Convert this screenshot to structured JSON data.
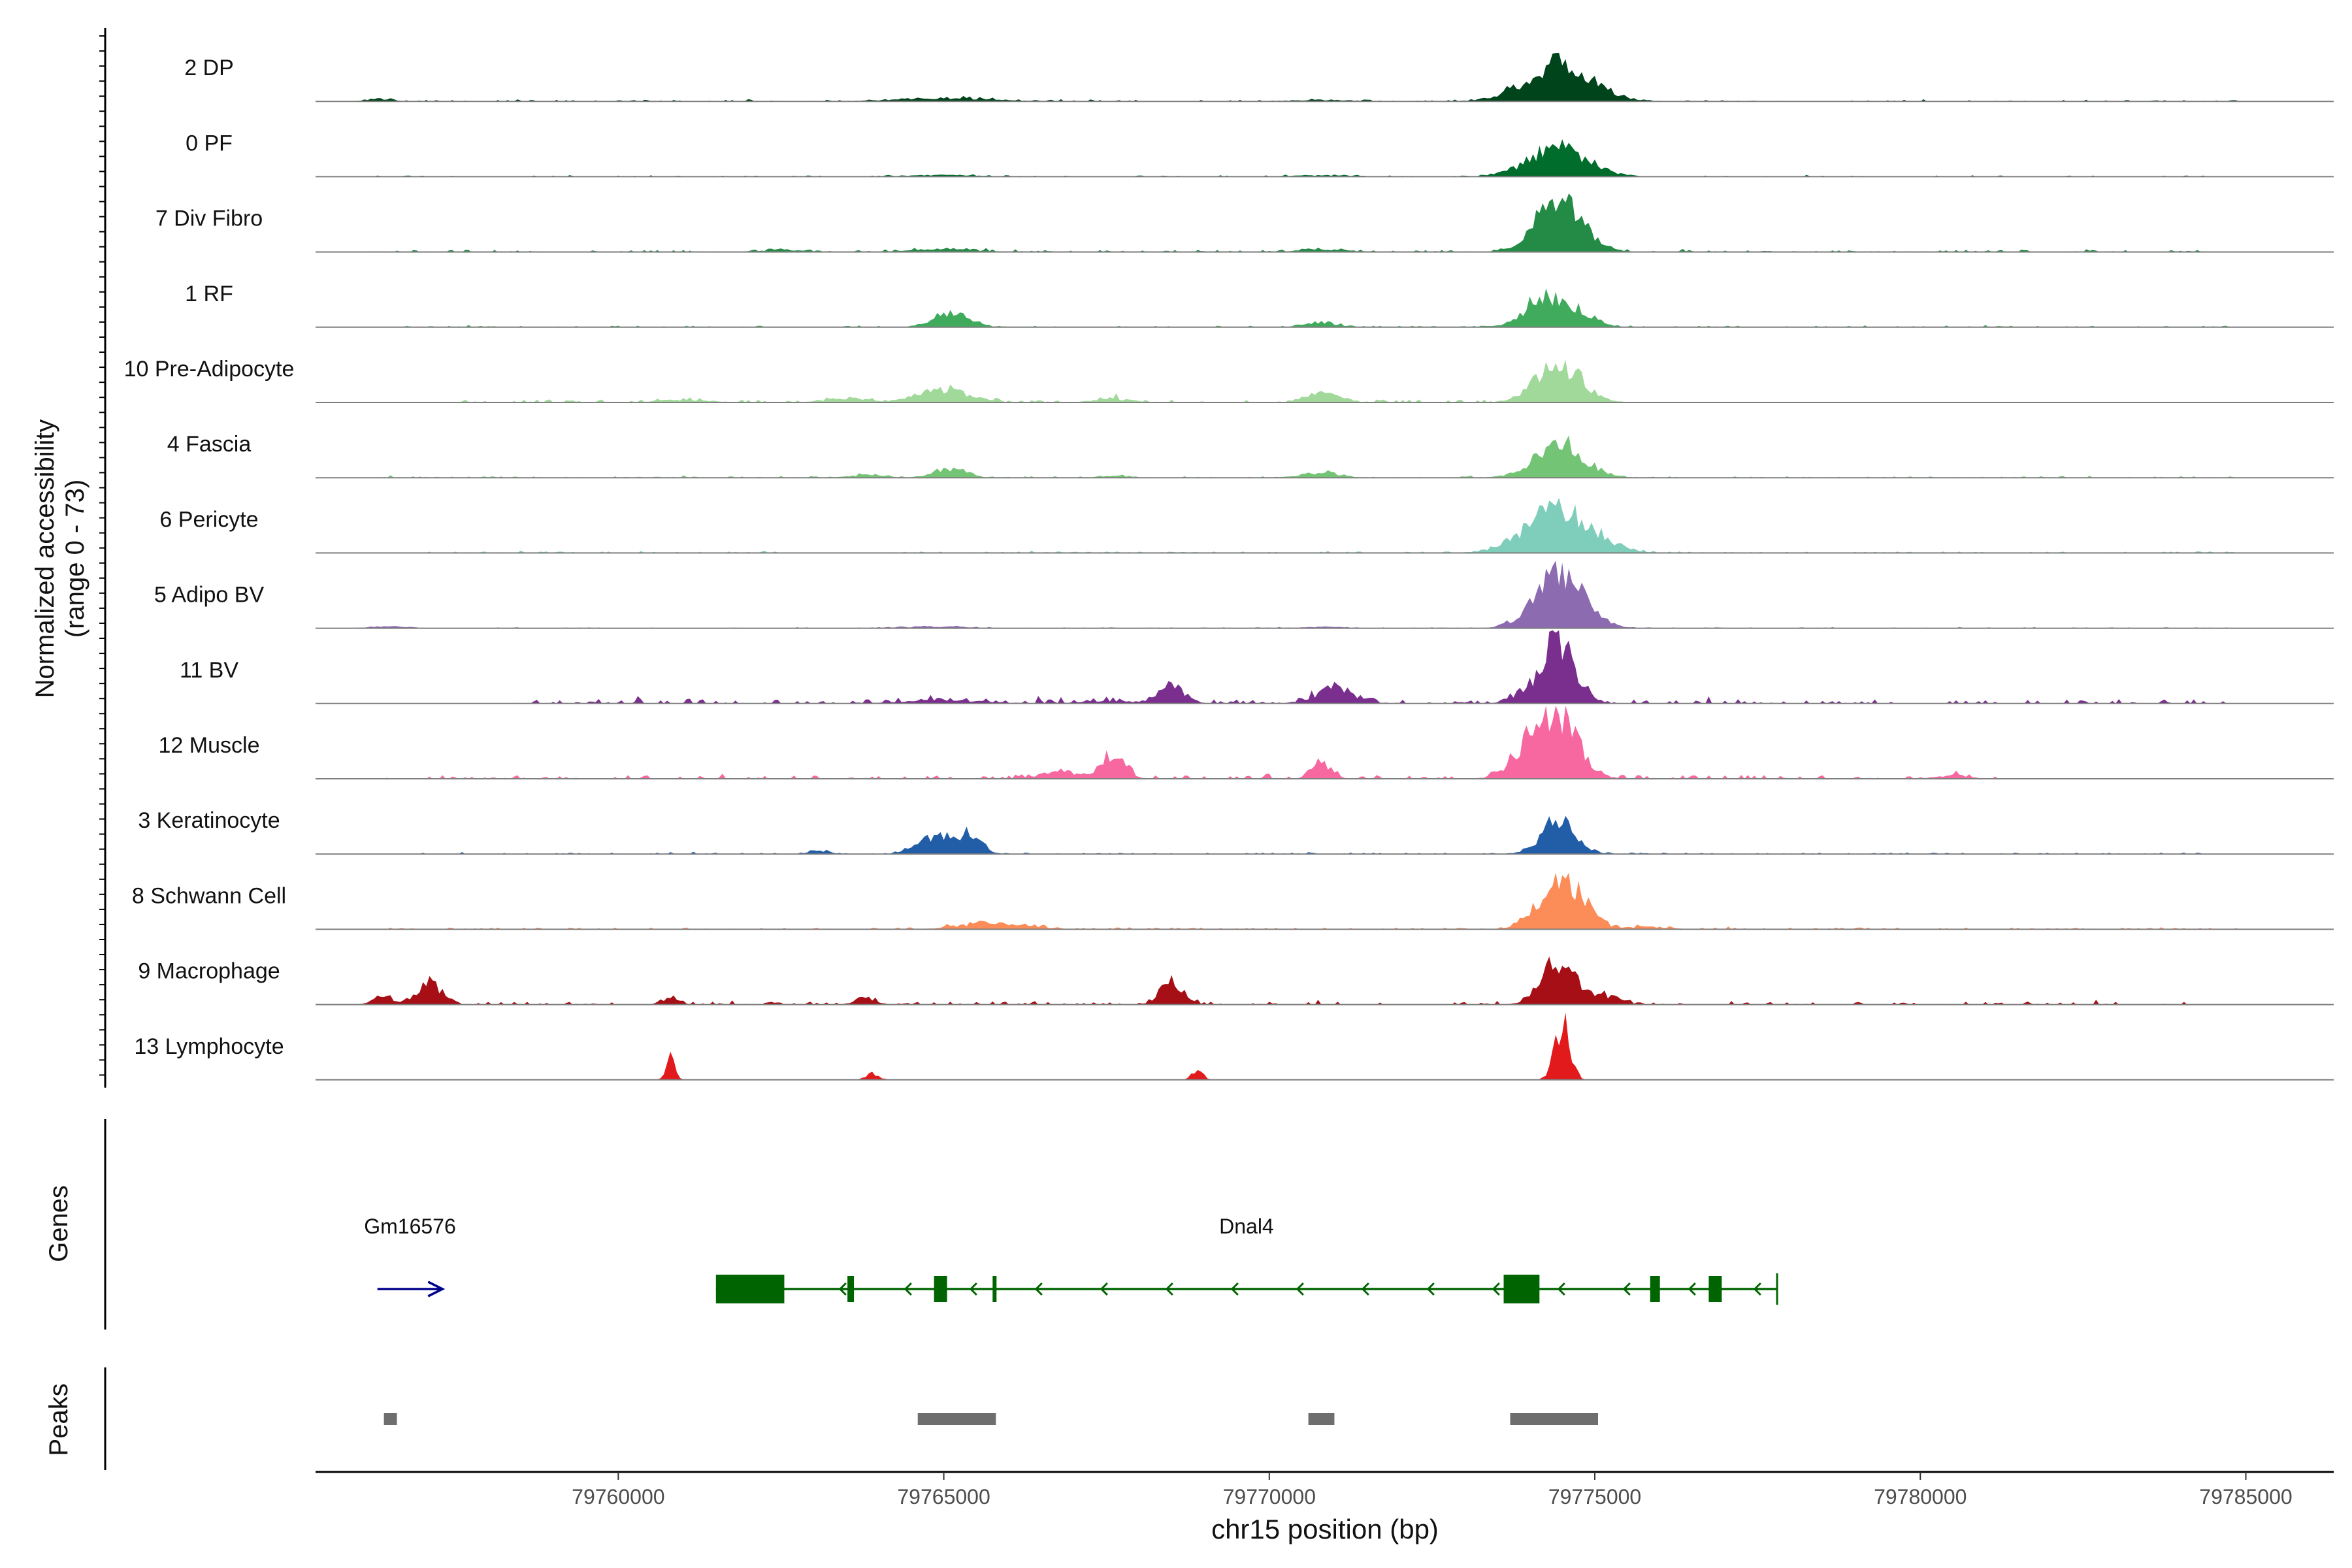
{
  "chart_data": {
    "type": "area",
    "y_axis_title_line1": "Normalized accessibility",
    "y_axis_title_line2": "(range 0 - 73)",
    "ylim": [
      0,
      73
    ],
    "x_axis_title": "chr15 position (bp)",
    "xlim": [
      79755350,
      79786350
    ],
    "x_ticks": [
      79760000,
      79765000,
      79770000,
      79775000,
      79780000,
      79785000
    ],
    "x_tick_labels": [
      "79760000",
      "79765000",
      "79770000",
      "79775000",
      "79780000",
      "79785000"
    ],
    "genes_label": "Genes",
    "peaks_label": "Peaks",
    "tracks": [
      {
        "name": "2 DP",
        "color": "#00441b",
        "peaks": [
          [
            79774450,
            45,
            500
          ],
          [
            79765000,
            4,
            700
          ],
          [
            79756300,
            3,
            200
          ],
          [
            79770800,
            1.5,
            500
          ]
        ],
        "noise": 1.0,
        "noise_range": [
          79756200,
          79784900
        ]
      },
      {
        "name": "0 PF",
        "color": "#006d2c",
        "peaks": [
          [
            79774450,
            34,
            450
          ],
          [
            79765000,
            2,
            500
          ],
          [
            79770800,
            1.5,
            500
          ]
        ],
        "noise": 0.8,
        "noise_range": [
          79756200,
          79784900
        ]
      },
      {
        "name": "7 Div Fibro",
        "color": "#238b45",
        "peaks": [
          [
            79774450,
            60,
            350
          ],
          [
            79765000,
            3,
            500
          ],
          [
            79762500,
            2.5,
            300
          ],
          [
            79770800,
            2.5,
            400
          ]
        ],
        "noise": 1.3,
        "noise_range": [
          79756200,
          79784900
        ]
      },
      {
        "name": "1 RF",
        "color": "#41ab5d",
        "peaks": [
          [
            79774450,
            32,
            350
          ],
          [
            79774050,
            13,
            250
          ],
          [
            79765100,
            16,
            280
          ],
          [
            79770800,
            6,
            220
          ]
        ],
        "noise": 1.0,
        "noise_range": [
          79756200,
          79784900
        ]
      },
      {
        "name": "10 Pre-Adipocyte",
        "color": "#a1d99b",
        "peaks": [
          [
            79774450,
            42,
            350
          ],
          [
            79765000,
            14,
            400
          ],
          [
            79770800,
            11,
            250
          ],
          [
            79763500,
            5,
            300
          ],
          [
            79767600,
            4,
            300
          ],
          [
            79761000,
            3,
            400
          ]
        ],
        "noise": 2.0,
        "noise_range": [
          79757300,
          79774800
        ]
      },
      {
        "name": "4 Fascia",
        "color": "#74c476",
        "peaks": [
          [
            79774450,
            40,
            380
          ],
          [
            79765100,
            11,
            250
          ],
          [
            79770800,
            6,
            300
          ],
          [
            79763800,
            3,
            250
          ],
          [
            79767600,
            2,
            250
          ]
        ],
        "noise": 1.0,
        "noise_range": [
          79756200,
          79784900
        ]
      },
      {
        "name": "6 Pericyte",
        "color": "#7fcdbb",
        "peaks": [
          [
            79774450,
            52,
            500
          ]
        ],
        "noise": 1.0,
        "noise_range": [
          79756200,
          79784900
        ]
      },
      {
        "name": "5 Adipo BV",
        "color": "#8c6bb1",
        "peaks": [
          [
            79774450,
            60,
            380
          ],
          [
            79764900,
            2,
            500
          ],
          [
            79770800,
            1.5,
            400
          ],
          [
            79756500,
            2,
            300
          ]
        ],
        "noise": 0.6,
        "noise_range": [
          79756200,
          79784900
        ]
      },
      {
        "name": "11 BV",
        "color": "#7a2f8f",
        "peaks": [
          [
            79774450,
            68,
            250
          ],
          [
            79768500,
            20,
            200
          ],
          [
            79771000,
            17,
            300
          ],
          [
            79774000,
            12,
            250
          ],
          [
            79765000,
            4,
            600
          ],
          [
            79767500,
            3,
            400
          ]
        ],
        "noise": 3.0,
        "noise_range": [
          79758300,
          79784700
        ]
      },
      {
        "name": "12 Muscle",
        "color": "#f768a1",
        "peaks": [
          [
            79774450,
            58,
            320
          ],
          [
            79774050,
            35,
            300
          ],
          [
            79767600,
            30,
            180
          ],
          [
            79770800,
            20,
            150
          ],
          [
            79766800,
            8,
            300
          ],
          [
            79780500,
            4,
            250
          ]
        ],
        "noise": 2.5,
        "noise_range": [
          79756300,
          79781200
        ]
      },
      {
        "name": "3 Keratinocyte",
        "color": "#225ea8",
        "peaks": [
          [
            79774450,
            40,
            260
          ],
          [
            79765050,
            22,
            220
          ],
          [
            79765450,
            20,
            160
          ],
          [
            79764600,
            12,
            180
          ],
          [
            79763100,
            4,
            150
          ]
        ],
        "noise": 1.0,
        "noise_range": [
          79756200,
          79784900
        ]
      },
      {
        "name": "8 Schwann Cell",
        "color": "#fc8d59",
        "peaks": [
          [
            79774450,
            52,
            320
          ],
          [
            79774850,
            10,
            200
          ],
          [
            79765800,
            8,
            500
          ],
          [
            79775800,
            3,
            300
          ]
        ],
        "noise": 1.2,
        "noise_range": [
          79756200,
          79784900
        ]
      },
      {
        "name": "9 Macrophage",
        "color": "#a50f15",
        "peaks": [
          [
            79774450,
            50,
            260
          ],
          [
            79768500,
            26,
            180
          ],
          [
            79757100,
            28,
            180
          ],
          [
            79756400,
            10,
            150
          ],
          [
            79760800,
            9,
            120
          ],
          [
            79763800,
            8,
            150
          ],
          [
            79775200,
            10,
            200
          ]
        ],
        "noise": 2.0,
        "noise_range": [
          79756300,
          79784100
        ]
      },
      {
        "name": "13 Lymphocyte",
        "color": "#e31a1c",
        "peaks": [
          [
            79774500,
            65,
            120
          ],
          [
            79760800,
            25,
            70
          ],
          [
            79768900,
            12,
            80
          ],
          [
            79763900,
            8,
            100
          ]
        ],
        "noise": 0,
        "noise_range": [
          79756300,
          79775000
        ]
      }
    ],
    "genes": [
      {
        "name": "Gm16576",
        "strand": "+",
        "start": 79756300,
        "end": 79757300,
        "color": "#00008b",
        "exons": []
      },
      {
        "name": "Dnal4",
        "strand": "-",
        "start": 79761500,
        "end": 79777800,
        "color": "#006400",
        "exons": [
          [
            79761500,
            79762550
          ],
          [
            79763520,
            79763620
          ],
          [
            79764850,
            79765050
          ],
          [
            79765750,
            79765800
          ],
          [
            79773600,
            79774150
          ],
          [
            79775850,
            79776000
          ],
          [
            79776750,
            79776950
          ]
        ],
        "ticks": [
          79777800
        ]
      }
    ],
    "peaks": [
      [
        79756400,
        79756600
      ],
      [
        79764600,
        79765800
      ],
      [
        79770600,
        79771000
      ],
      [
        79773700,
        79775050
      ]
    ]
  }
}
